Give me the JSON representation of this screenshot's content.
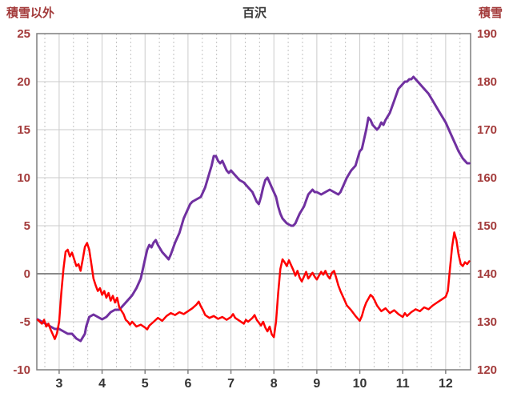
{
  "header": {
    "left_label": "積雪以外",
    "title": "百沢",
    "right_label": "積雪"
  },
  "colors": {
    "axis_label": "#a33b3b",
    "title": "#3a3a3a",
    "x_tick": "#333333",
    "grid_major": "#cbcbcb",
    "grid_minor": "#c2c2c2",
    "zero_line": "#8a8a8a",
    "frame": "#7f7f7f",
    "series_snow": "#7030a0",
    "series_other": "#ff0000"
  },
  "chart_data": {
    "type": "line",
    "title": "百沢",
    "x_range": [
      2.48,
      12.58
    ],
    "x_ticks": [
      3,
      4,
      5,
      6,
      7,
      8,
      9,
      10,
      11,
      12
    ],
    "minor_divisions_per_unit": 3,
    "grid": true,
    "left_axis": {
      "label": "積雪以外",
      "min": -10,
      "max": 25,
      "ticks": [
        25,
        20,
        15,
        10,
        5,
        0,
        -5,
        -10
      ]
    },
    "right_axis": {
      "label": "積雪",
      "min": 120,
      "max": 190,
      "ticks": [
        190,
        180,
        170,
        160,
        150,
        140,
        130,
        120
      ]
    },
    "series": [
      {
        "name": "積雪",
        "axis": "right",
        "color": "#7030a0",
        "width": 3,
        "points": [
          [
            2.5,
            130.5
          ],
          [
            2.6,
            130
          ],
          [
            2.7,
            129.5
          ],
          [
            2.8,
            129
          ],
          [
            2.9,
            128.5
          ],
          [
            3.0,
            128.5
          ],
          [
            3.1,
            128
          ],
          [
            3.2,
            127.5
          ],
          [
            3.3,
            127.5
          ],
          [
            3.4,
            126.5
          ],
          [
            3.5,
            126
          ],
          [
            3.6,
            127.5
          ],
          [
            3.63,
            129
          ],
          [
            3.7,
            131
          ],
          [
            3.8,
            131.5
          ],
          [
            3.9,
            131
          ],
          [
            4.0,
            130.5
          ],
          [
            4.1,
            131
          ],
          [
            4.2,
            132
          ],
          [
            4.3,
            132.5
          ],
          [
            4.4,
            132.5
          ],
          [
            4.5,
            133.5
          ],
          [
            4.6,
            134.5
          ],
          [
            4.7,
            135.5
          ],
          [
            4.8,
            137
          ],
          [
            4.9,
            139
          ],
          [
            5.0,
            143
          ],
          [
            5.05,
            145
          ],
          [
            5.1,
            146
          ],
          [
            5.15,
            145.5
          ],
          [
            5.2,
            146.5
          ],
          [
            5.25,
            147
          ],
          [
            5.3,
            146
          ],
          [
            5.4,
            144.5
          ],
          [
            5.5,
            143.5
          ],
          [
            5.55,
            143
          ],
          [
            5.6,
            144
          ],
          [
            5.7,
            146.5
          ],
          [
            5.8,
            148.5
          ],
          [
            5.9,
            151.5
          ],
          [
            6.0,
            153.5
          ],
          [
            6.05,
            154.5
          ],
          [
            6.1,
            155
          ],
          [
            6.2,
            155.5
          ],
          [
            6.3,
            156
          ],
          [
            6.4,
            158
          ],
          [
            6.5,
            161
          ],
          [
            6.55,
            162.5
          ],
          [
            6.6,
            164.5
          ],
          [
            6.65,
            164.5
          ],
          [
            6.7,
            163.5
          ],
          [
            6.75,
            163
          ],
          [
            6.8,
            163.5
          ],
          [
            6.85,
            162.5
          ],
          [
            6.9,
            161.5
          ],
          [
            6.95,
            161
          ],
          [
            7.0,
            161.5
          ],
          [
            7.05,
            161
          ],
          [
            7.1,
            160.5
          ],
          [
            7.15,
            160
          ],
          [
            7.2,
            159.5
          ],
          [
            7.3,
            159
          ],
          [
            7.35,
            158.5
          ],
          [
            7.4,
            158
          ],
          [
            7.5,
            157
          ],
          [
            7.55,
            156
          ],
          [
            7.6,
            155
          ],
          [
            7.65,
            154.5
          ],
          [
            7.7,
            156
          ],
          [
            7.75,
            158
          ],
          [
            7.8,
            159.5
          ],
          [
            7.85,
            160
          ],
          [
            7.9,
            159
          ],
          [
            7.95,
            158
          ],
          [
            8.0,
            157
          ],
          [
            8.05,
            156
          ],
          [
            8.1,
            154
          ],
          [
            8.15,
            152.5
          ],
          [
            8.2,
            151.5
          ],
          [
            8.3,
            150.5
          ],
          [
            8.4,
            150
          ],
          [
            8.45,
            150
          ],
          [
            8.5,
            150.5
          ],
          [
            8.55,
            151.5
          ],
          [
            8.6,
            152.5
          ],
          [
            8.7,
            154
          ],
          [
            8.8,
            156.5
          ],
          [
            8.85,
            157
          ],
          [
            8.9,
            157.5
          ],
          [
            8.95,
            157
          ],
          [
            9.0,
            157
          ],
          [
            9.1,
            156.5
          ],
          [
            9.2,
            157
          ],
          [
            9.3,
            157.5
          ],
          [
            9.4,
            157
          ],
          [
            9.5,
            156.5
          ],
          [
            9.55,
            157
          ],
          [
            9.6,
            158
          ],
          [
            9.7,
            160
          ],
          [
            9.8,
            161.5
          ],
          [
            9.9,
            162.5
          ],
          [
            10.0,
            165.5
          ],
          [
            10.05,
            166
          ],
          [
            10.1,
            168
          ],
          [
            10.15,
            170
          ],
          [
            10.2,
            172.5
          ],
          [
            10.25,
            172
          ],
          [
            10.3,
            171
          ],
          [
            10.35,
            170.5
          ],
          [
            10.4,
            170
          ],
          [
            10.45,
            170.5
          ],
          [
            10.5,
            171.5
          ],
          [
            10.55,
            171
          ],
          [
            10.6,
            172
          ],
          [
            10.7,
            173.5
          ],
          [
            10.8,
            176
          ],
          [
            10.9,
            178.5
          ],
          [
            11.0,
            179.5
          ],
          [
            11.05,
            180
          ],
          [
            11.1,
            180
          ],
          [
            11.15,
            180.5
          ],
          [
            11.2,
            180.5
          ],
          [
            11.25,
            181
          ],
          [
            11.3,
            180.5
          ],
          [
            11.35,
            180
          ],
          [
            11.4,
            179.5
          ],
          [
            11.5,
            178.5
          ],
          [
            11.6,
            177.5
          ],
          [
            11.7,
            176
          ],
          [
            11.8,
            174.5
          ],
          [
            11.9,
            173
          ],
          [
            12.0,
            171.5
          ],
          [
            12.1,
            169.5
          ],
          [
            12.2,
            167.5
          ],
          [
            12.3,
            165.5
          ],
          [
            12.4,
            164
          ],
          [
            12.5,
            163
          ],
          [
            12.55,
            163
          ]
        ]
      },
      {
        "name": "積雪以外",
        "axis": "left",
        "color": "#ff0000",
        "width": 2.5,
        "points": [
          [
            2.5,
            -4.8
          ],
          [
            2.6,
            -5.2
          ],
          [
            2.65,
            -4.8
          ],
          [
            2.7,
            -5.5
          ],
          [
            2.75,
            -5.2
          ],
          [
            2.8,
            -5.8
          ],
          [
            2.85,
            -6.3
          ],
          [
            2.9,
            -6.8
          ],
          [
            2.95,
            -6.2
          ],
          [
            3.0,
            -5.0
          ],
          [
            3.05,
            -2.0
          ],
          [
            3.1,
            0.5
          ],
          [
            3.15,
            2.3
          ],
          [
            3.2,
            2.5
          ],
          [
            3.25,
            1.8
          ],
          [
            3.3,
            2.2
          ],
          [
            3.35,
            1.5
          ],
          [
            3.4,
            0.8
          ],
          [
            3.45,
            1.0
          ],
          [
            3.5,
            0.3
          ],
          [
            3.55,
            1.5
          ],
          [
            3.6,
            2.8
          ],
          [
            3.65,
            3.2
          ],
          [
            3.7,
            2.5
          ],
          [
            3.75,
            1.0
          ],
          [
            3.8,
            -0.5
          ],
          [
            3.85,
            -1.2
          ],
          [
            3.9,
            -1.8
          ],
          [
            3.95,
            -1.5
          ],
          [
            4.0,
            -2.2
          ],
          [
            4.05,
            -1.8
          ],
          [
            4.1,
            -2.5
          ],
          [
            4.15,
            -2.0
          ],
          [
            4.2,
            -2.8
          ],
          [
            4.25,
            -2.3
          ],
          [
            4.3,
            -3.0
          ],
          [
            4.35,
            -2.5
          ],
          [
            4.4,
            -3.5
          ],
          [
            4.5,
            -4.2
          ],
          [
            4.55,
            -4.8
          ],
          [
            4.6,
            -5.0
          ],
          [
            4.65,
            -5.3
          ],
          [
            4.7,
            -5.0
          ],
          [
            4.8,
            -5.5
          ],
          [
            4.9,
            -5.3
          ],
          [
            5.0,
            -5.6
          ],
          [
            5.05,
            -5.8
          ],
          [
            5.1,
            -5.4
          ],
          [
            5.2,
            -5.0
          ],
          [
            5.3,
            -4.6
          ],
          [
            5.4,
            -4.9
          ],
          [
            5.5,
            -4.4
          ],
          [
            5.6,
            -4.1
          ],
          [
            5.7,
            -4.3
          ],
          [
            5.8,
            -4.0
          ],
          [
            5.9,
            -4.2
          ],
          [
            6.0,
            -3.9
          ],
          [
            6.1,
            -3.6
          ],
          [
            6.2,
            -3.2
          ],
          [
            6.25,
            -2.9
          ],
          [
            6.3,
            -3.4
          ],
          [
            6.35,
            -3.8
          ],
          [
            6.4,
            -4.3
          ],
          [
            6.5,
            -4.6
          ],
          [
            6.6,
            -4.4
          ],
          [
            6.7,
            -4.7
          ],
          [
            6.8,
            -4.5
          ],
          [
            6.9,
            -4.8
          ],
          [
            7.0,
            -4.5
          ],
          [
            7.05,
            -4.2
          ],
          [
            7.1,
            -4.6
          ],
          [
            7.2,
            -4.9
          ],
          [
            7.3,
            -5.2
          ],
          [
            7.35,
            -4.8
          ],
          [
            7.4,
            -5.0
          ],
          [
            7.5,
            -4.6
          ],
          [
            7.55,
            -4.3
          ],
          [
            7.6,
            -4.8
          ],
          [
            7.7,
            -5.4
          ],
          [
            7.75,
            -5.0
          ],
          [
            7.8,
            -5.6
          ],
          [
            7.85,
            -6.0
          ],
          [
            7.9,
            -5.5
          ],
          [
            7.95,
            -6.3
          ],
          [
            8.0,
            -6.6
          ],
          [
            8.05,
            -5.0
          ],
          [
            8.1,
            -2.0
          ],
          [
            8.15,
            0.5
          ],
          [
            8.2,
            1.5
          ],
          [
            8.25,
            1.2
          ],
          [
            8.3,
            0.8
          ],
          [
            8.35,
            1.4
          ],
          [
            8.4,
            0.9
          ],
          [
            8.45,
            0.4
          ],
          [
            8.5,
            -0.2
          ],
          [
            8.55,
            0.3
          ],
          [
            8.6,
            -0.4
          ],
          [
            8.65,
            -0.8
          ],
          [
            8.7,
            -0.3
          ],
          [
            8.75,
            0.2
          ],
          [
            8.8,
            -0.5
          ],
          [
            8.85,
            -0.2
          ],
          [
            8.9,
            0.1
          ],
          [
            8.95,
            -0.3
          ],
          [
            9.0,
            -0.6
          ],
          [
            9.05,
            -0.2
          ],
          [
            9.1,
            0.2
          ],
          [
            9.15,
            -0.1
          ],
          [
            9.2,
            0.3
          ],
          [
            9.25,
            -0.2
          ],
          [
            9.3,
            -0.5
          ],
          [
            9.35,
            0.1
          ],
          [
            9.4,
            0.3
          ],
          [
            9.45,
            -0.4
          ],
          [
            9.5,
            -1.2
          ],
          [
            9.55,
            -1.8
          ],
          [
            9.6,
            -2.3
          ],
          [
            9.65,
            -2.8
          ],
          [
            9.7,
            -3.3
          ],
          [
            9.8,
            -3.8
          ],
          [
            9.9,
            -4.4
          ],
          [
            10.0,
            -4.9
          ],
          [
            10.05,
            -4.4
          ],
          [
            10.1,
            -3.6
          ],
          [
            10.15,
            -3.0
          ],
          [
            10.2,
            -2.6
          ],
          [
            10.25,
            -2.2
          ],
          [
            10.3,
            -2.4
          ],
          [
            10.35,
            -2.8
          ],
          [
            10.4,
            -3.3
          ],
          [
            10.45,
            -3.6
          ],
          [
            10.5,
            -3.9
          ],
          [
            10.6,
            -3.6
          ],
          [
            10.7,
            -4.1
          ],
          [
            10.8,
            -3.8
          ],
          [
            10.9,
            -4.2
          ],
          [
            11.0,
            -4.5
          ],
          [
            11.05,
            -4.1
          ],
          [
            11.1,
            -4.4
          ],
          [
            11.2,
            -4.0
          ],
          [
            11.3,
            -3.7
          ],
          [
            11.4,
            -3.9
          ],
          [
            11.5,
            -3.5
          ],
          [
            11.6,
            -3.7
          ],
          [
            11.7,
            -3.3
          ],
          [
            11.8,
            -3.0
          ],
          [
            11.9,
            -2.7
          ],
          [
            12.0,
            -2.4
          ],
          [
            12.05,
            -1.8
          ],
          [
            12.1,
            0.5
          ],
          [
            12.15,
            2.8
          ],
          [
            12.2,
            4.3
          ],
          [
            12.25,
            3.5
          ],
          [
            12.3,
            2.0
          ],
          [
            12.35,
            1.0
          ],
          [
            12.4,
            0.8
          ],
          [
            12.45,
            1.2
          ],
          [
            12.5,
            1.0
          ],
          [
            12.55,
            1.3
          ]
        ]
      }
    ]
  }
}
